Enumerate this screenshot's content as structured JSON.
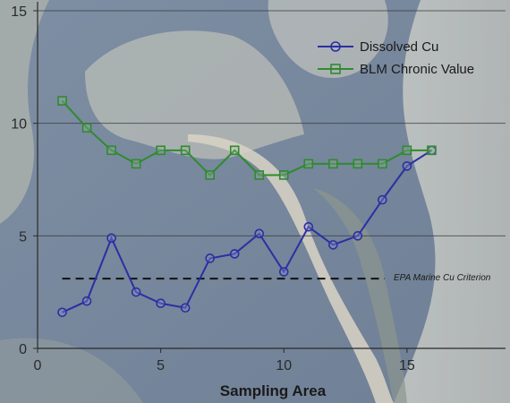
{
  "chart_data": {
    "type": "line",
    "x_axis": {
      "label": "Sampling Area",
      "range": [
        0,
        19
      ],
      "ticks": [
        0,
        5,
        10,
        15
      ]
    },
    "y_axis": {
      "label": "",
      "range": [
        0,
        15
      ],
      "ticks": [
        0,
        5,
        10,
        15
      ]
    },
    "grid": {
      "horizontal": true,
      "vertical": false
    },
    "legend_position": "top-right",
    "series": [
      {
        "name": "Dissolved Cu",
        "color": "#2b2fa3",
        "marker": "circle",
        "x": [
          1,
          2,
          3,
          4,
          5,
          6,
          7,
          8,
          9,
          10,
          11,
          12,
          13,
          14,
          15,
          16
        ],
        "y": [
          1.6,
          2.1,
          4.9,
          2.5,
          2.0,
          1.8,
          4.0,
          4.2,
          5.1,
          3.4,
          5.4,
          4.6,
          5.0,
          6.6,
          8.1,
          8.8
        ]
      },
      {
        "name": "BLM Chronic Value",
        "color": "#2e8b2e",
        "marker": "square",
        "x": [
          1,
          2,
          3,
          4,
          5,
          6,
          7,
          8,
          9,
          10,
          11,
          12,
          13,
          14,
          15,
          16
        ],
        "y": [
          11.0,
          9.8,
          8.8,
          8.2,
          8.8,
          8.8,
          7.7,
          8.8,
          7.7,
          7.7,
          8.2,
          8.2,
          8.2,
          8.2,
          8.8,
          8.8
        ]
      }
    ],
    "reference_line": {
      "y": 3.1,
      "x_start": 1,
      "x_end": 19,
      "style": "dashed",
      "label": "EPA Marine Cu Criterion"
    }
  }
}
